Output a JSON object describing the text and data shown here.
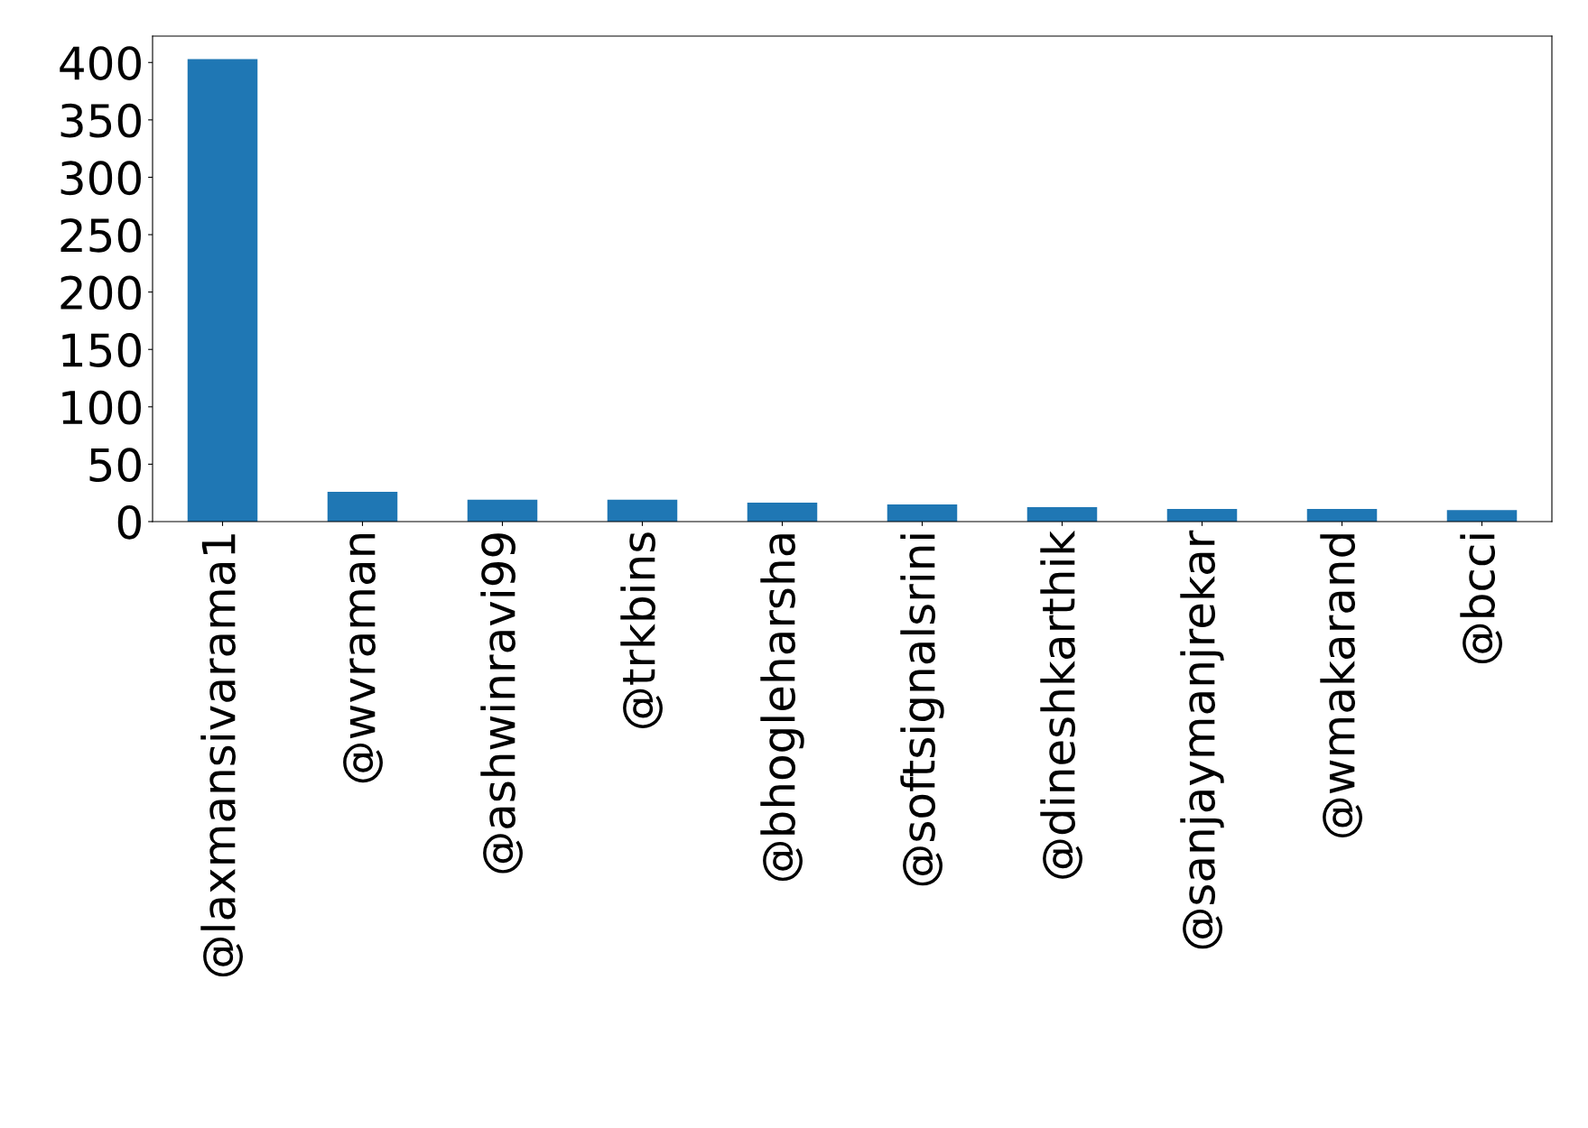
{
  "chart_data": {
    "type": "bar",
    "categories": [
      "@laxmansivarama1",
      "@wvraman",
      "@ashwinravi99",
      "@trkbins",
      "@bhogleharsha",
      "@softsignalsrini",
      "@dineshkarthik",
      "@sanjaymanjrekar",
      "@wmakarand",
      "@bcci"
    ],
    "values": [
      403,
      26,
      19,
      19,
      16.5,
      15,
      12.5,
      11,
      11,
      10
    ],
    "color": "#1f77b4",
    "ylim": [
      0,
      423
    ],
    "yticks": [
      0,
      50,
      100,
      150,
      200,
      250,
      300,
      350,
      400
    ],
    "grid": false,
    "legend": false
  }
}
